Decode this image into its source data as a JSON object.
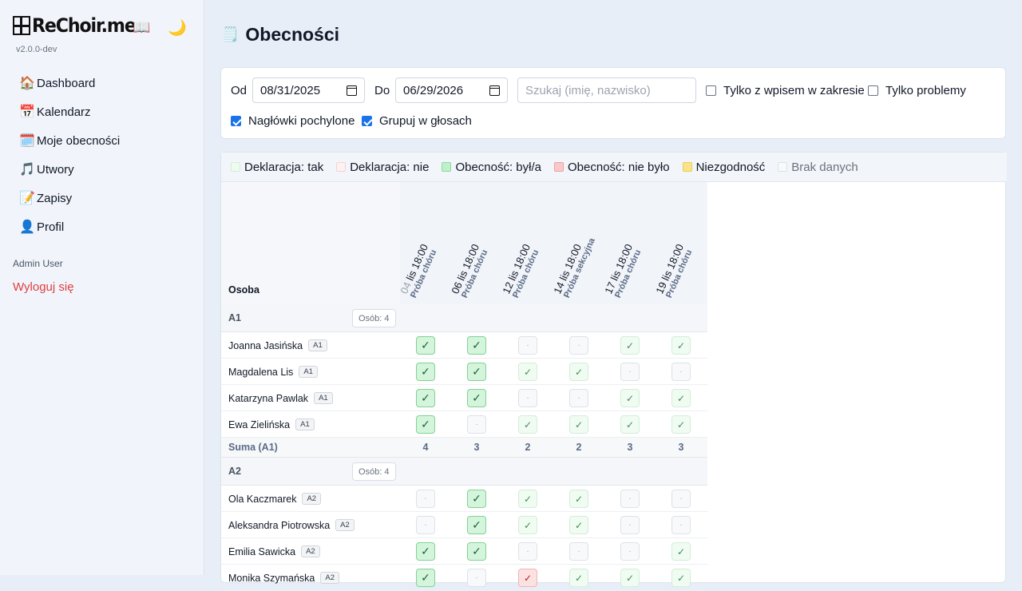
{
  "app": {
    "logo_text": "ReChoir.me",
    "version": "v2.0.0-dev",
    "book_icon": "📖",
    "moon_icon": "🌙"
  },
  "nav": [
    {
      "icon": "🏠",
      "icon_name": "house-icon",
      "label": "Dashboard"
    },
    {
      "icon": "📅",
      "icon_name": "calendar-icon",
      "label": "Kalendarz"
    },
    {
      "icon": "🗓️",
      "icon_name": "tear-off-calendar-icon",
      "label": "Moje obecności"
    },
    {
      "icon": "🎵",
      "icon_name": "music-note-icon",
      "label": "Utwory"
    },
    {
      "icon": "📝",
      "icon_name": "memo-icon",
      "label": "Zapisy"
    },
    {
      "icon": "👤",
      "icon_name": "user-icon",
      "label": "Profil"
    }
  ],
  "user": {
    "name": "Admin User",
    "logout_label": "Wyloguj się"
  },
  "page": {
    "icon": "🗒️",
    "title": "Obecności"
  },
  "filters": {
    "from_label": "Od",
    "from_value": "08/31/2025",
    "to_label": "Do",
    "to_value": "06/29/2026",
    "search_placeholder": "Szukaj (imię, nazwisko)",
    "only_in_range": {
      "label": "Tylko z wpisem w zakresie",
      "checked": false
    },
    "only_problems": {
      "label": "Tylko problemy",
      "checked": false
    },
    "slanted_headers": {
      "label": "Nagłówki pochylone",
      "checked": true
    },
    "group_by_voice": {
      "label": "Grupuj w głosach",
      "checked": true
    }
  },
  "legend": [
    {
      "label": "Deklaracja: tak",
      "color": "#eefbf1",
      "border": "#d3eed9"
    },
    {
      "label": "Deklaracja: nie",
      "color": "#fdf1f1",
      "border": "#f3d4d4"
    },
    {
      "label": "Obecność: był/a",
      "color": "#bff0cb",
      "border": "#8fd9a1"
    },
    {
      "label": "Obecność: nie było",
      "color": "#f9c8c8",
      "border": "#eca3a3"
    },
    {
      "label": "Niezgodność",
      "color": "#fbe38a",
      "border": "#eccc55"
    },
    {
      "label": "Brak danych",
      "color": "#f8f9fb",
      "border": "#dde2e8",
      "muted": true
    }
  ],
  "table": {
    "person_header": "Osoba",
    "events": [
      {
        "date": "04 lis 18:00",
        "date_dim": "04",
        "date_rest": " lis 18:00",
        "type": "Próba chóru"
      },
      {
        "date": "06 lis 18:00",
        "type": "Próba chóru"
      },
      {
        "date": "12 lis 18:00",
        "type": "Próba chóru"
      },
      {
        "date": "14 lis 18:00",
        "type": "Próba sekcyjna"
      },
      {
        "date": "17 lis 18:00",
        "type": "Próba chóru"
      },
      {
        "date": "19 lis 18:00",
        "type": "Próba chóru"
      }
    ],
    "groups": [
      {
        "name": "A1",
        "count_label": "Osób: 4",
        "people": [
          {
            "name": "Joanna Jasińska",
            "voice": "A1",
            "cells": [
              "yes",
              "yes",
              "none",
              "none",
              "decl",
              "decl"
            ]
          },
          {
            "name": "Magdalena Lis",
            "voice": "A1",
            "cells": [
              "yes",
              "yes",
              "decl",
              "decl",
              "none",
              "none"
            ]
          },
          {
            "name": "Katarzyna Pawlak",
            "voice": "A1",
            "cells": [
              "yes",
              "yes",
              "none",
              "none",
              "decl",
              "decl"
            ]
          },
          {
            "name": "Ewa Zielińska",
            "voice": "A1",
            "cells": [
              "yes",
              "none",
              "decl",
              "decl",
              "decl",
              "decl"
            ]
          }
        ],
        "sum_label": "Suma (A1)",
        "sums": [
          "4",
          "3",
          "2",
          "2",
          "3",
          "3"
        ]
      },
      {
        "name": "A2",
        "count_label": "Osób: 4",
        "people": [
          {
            "name": "Ola Kaczmarek",
            "voice": "A2",
            "cells": [
              "none",
              "yes",
              "decl",
              "decl",
              "none",
              "none"
            ]
          },
          {
            "name": "Aleksandra Piotrowska",
            "voice": "A2",
            "cells": [
              "none",
              "yes",
              "decl",
              "decl",
              "none",
              "none"
            ]
          },
          {
            "name": "Emilia Sawicka",
            "voice": "A2",
            "cells": [
              "yes",
              "yes",
              "none",
              "none",
              "none",
              "decl"
            ]
          },
          {
            "name": "Monika Szymańska",
            "voice": "A2",
            "cells": [
              "yes",
              "none",
              "no",
              "decl",
              "decl",
              "decl"
            ]
          }
        ]
      }
    ]
  },
  "symbols": {
    "check": "✓",
    "dot": "·"
  }
}
